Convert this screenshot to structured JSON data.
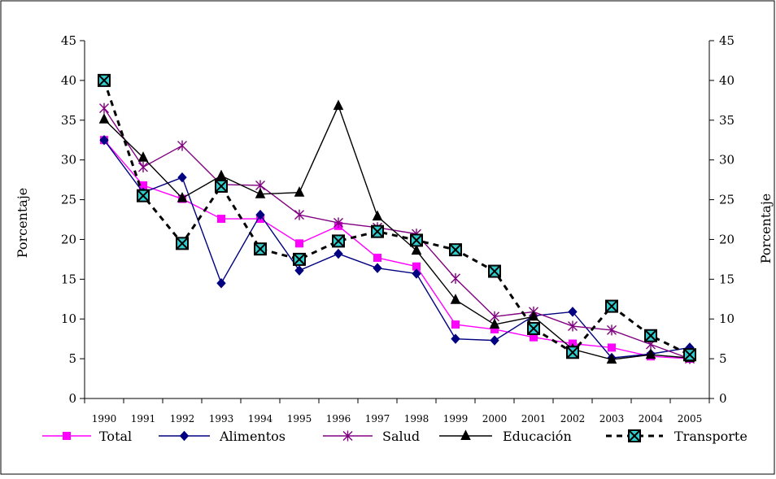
{
  "chart_data": {
    "type": "line",
    "title": "",
    "ylabel": "Porcentaje",
    "ylabel_right": "Porcentaje",
    "ylim": [
      0,
      45
    ],
    "yticks": [
      "0",
      "5",
      "10",
      "15",
      "20",
      "25",
      "30",
      "35",
      "40",
      "45"
    ],
    "categories": [
      "1990",
      "1991",
      "1992",
      "1993",
      "1994",
      "1995",
      "1996",
      "1997",
      "1998",
      "1999",
      "2000",
      "2001",
      "2002",
      "2003",
      "2004",
      "2005"
    ],
    "legend_position": "bottom",
    "grid": false,
    "series": [
      {
        "name": "Total",
        "color": "#ff00ff",
        "marker": "square",
        "dash": "solid",
        "values": [
          32.5,
          26.8,
          25.1,
          22.6,
          22.6,
          19.5,
          21.7,
          17.7,
          16.6,
          9.3,
          8.7,
          7.7,
          6.9,
          6.4,
          5.3,
          5.0
        ]
      },
      {
        "name": "Alimentos",
        "color": "#000080",
        "marker": "diamond",
        "dash": "solid",
        "values": [
          32.5,
          25.9,
          27.8,
          14.5,
          23.1,
          16.1,
          18.2,
          16.4,
          15.7,
          7.5,
          7.3,
          10.4,
          10.9,
          5.1,
          5.6,
          6.4
        ]
      },
      {
        "name": "Salud",
        "color": "#800080",
        "marker": "star",
        "dash": "solid",
        "values": [
          36.5,
          29.1,
          31.8,
          26.9,
          26.8,
          23.1,
          22.1,
          21.5,
          20.7,
          15.1,
          10.3,
          10.9,
          9.1,
          8.6,
          6.8,
          5.0
        ]
      },
      {
        "name": "Educación",
        "color": "#000000",
        "marker": "triangle",
        "dash": "solid",
        "values": [
          35.1,
          30.3,
          25.2,
          28.0,
          25.7,
          25.9,
          36.8,
          22.9,
          18.6,
          12.4,
          9.3,
          10.3,
          6.2,
          4.9,
          5.5,
          5.1
        ]
      },
      {
        "name": "Transporte",
        "color": "#000000",
        "marker": "boxx",
        "dash": "dashed",
        "values": [
          40.0,
          25.5,
          19.5,
          26.7,
          18.8,
          17.5,
          19.8,
          21.0,
          19.9,
          18.7,
          16.0,
          8.8,
          5.8,
          11.6,
          7.9,
          5.5
        ]
      }
    ]
  }
}
